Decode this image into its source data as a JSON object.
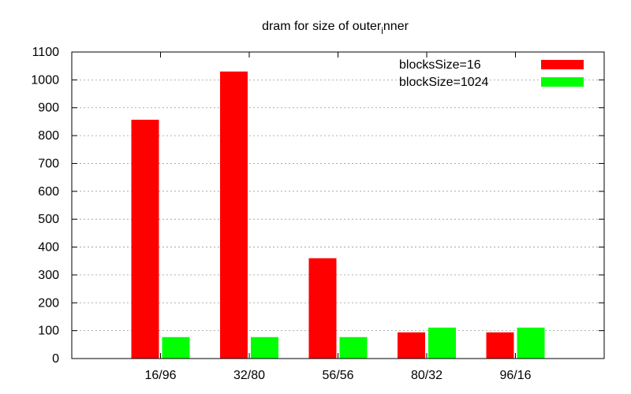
{
  "chart_data": {
    "type": "bar",
    "title": "dram for size of outer",
    "title_subscript": "i",
    "title_suffix": "nner",
    "xlabel": "",
    "ylabel": "",
    "categories": [
      "16/96",
      "32/80",
      "56/56",
      "80/32",
      "96/16"
    ],
    "series": [
      {
        "name": "blocksSize=16",
        "color": "#ff0000",
        "values": [
          857,
          1030,
          360,
          94,
          94
        ]
      },
      {
        "name": "blockSize=1024",
        "color": "#00ff00",
        "values": [
          77,
          77,
          77,
          111,
          111
        ]
      }
    ],
    "ylim": [
      0,
      1100
    ],
    "yticks": [
      0,
      100,
      200,
      300,
      400,
      500,
      600,
      700,
      800,
      900,
      1000,
      1100
    ],
    "grid": true,
    "legend_position": "top-right"
  }
}
